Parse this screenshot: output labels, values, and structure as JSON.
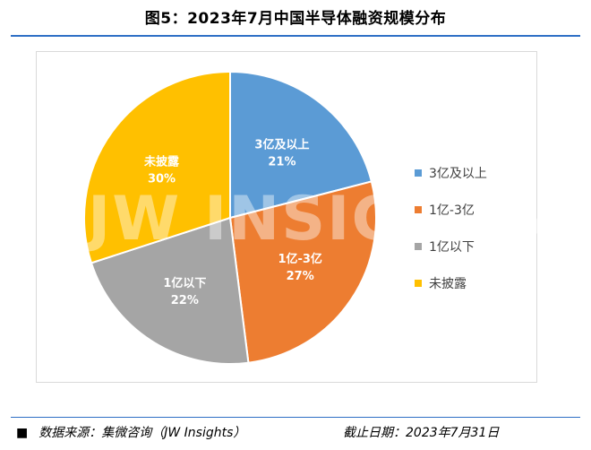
{
  "title": "图5：2023年7月中国半导体融资规模分布",
  "chart_data": {
    "type": "pie",
    "title": "图5：2023年7月中国半导体融资规模分布",
    "categories": [
      "3亿及以上",
      "1亿-3亿",
      "1亿以下",
      "未披露"
    ],
    "values": [
      21,
      27,
      22,
      30
    ],
    "unit": "%",
    "colors": [
      "#5b9bd5",
      "#ed7d31",
      "#a5a5a5",
      "#ffc000"
    ],
    "legend_position": "right"
  },
  "watermark": "JW INSIGHTS",
  "footer": {
    "source_label": "数据来源：",
    "source_value": "集微咨询（JW Insights）",
    "date_label": "截止日期：",
    "date_value": "2023年7月31日"
  },
  "icons": {
    "footer_marker": "black-square-icon"
  }
}
